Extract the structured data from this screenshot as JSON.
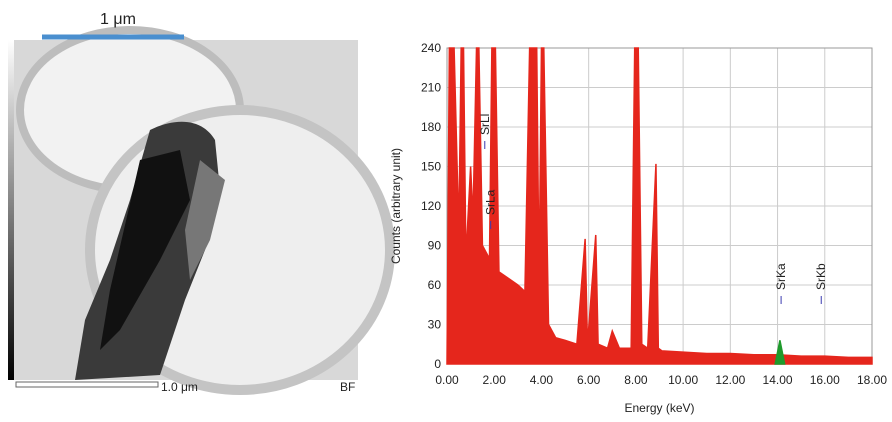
{
  "micrograph": {
    "scale_bar_label": "1 μm",
    "bottom_label": "1.0 μm",
    "mode": "BF"
  },
  "chart_data": {
    "type": "line",
    "xlabel": "Energy (keV)",
    "ylabel": "Counts (arbitrary unit)",
    "xlim": [
      0,
      18
    ],
    "ylim": [
      0,
      240
    ],
    "xticks": [
      {
        "value": 0,
        "label": "0.00"
      },
      {
        "value": 2,
        "label": "2.00"
      },
      {
        "value": 4,
        "label": "4.00"
      },
      {
        "value": 6,
        "label": "6.00"
      },
      {
        "value": 8,
        "label": "8.00"
      },
      {
        "value": 10,
        "label": "10.00"
      },
      {
        "value": 12,
        "label": "12.00"
      },
      {
        "value": 14,
        "label": "14.00"
      },
      {
        "value": 16,
        "label": "16.00"
      },
      {
        "value": 18,
        "label": "18.00"
      }
    ],
    "yticks": [
      0,
      30,
      60,
      90,
      120,
      150,
      180,
      210,
      240
    ],
    "grid": true,
    "series": [
      {
        "color": "#e5261c",
        "x": [
          0,
          0.1,
          0.3,
          0.5,
          0.6,
          0.7,
          0.8,
          1.0,
          1.1,
          1.25,
          1.35,
          1.5,
          1.8,
          1.9,
          2.05,
          2.2,
          2.6,
          3.0,
          3.3,
          3.5,
          3.8,
          3.9,
          4.0,
          4.1,
          4.3,
          4.6,
          5.0,
          5.5,
          5.85,
          5.95,
          6.3,
          6.4,
          6.8,
          7.0,
          7.3,
          7.8,
          7.95,
          8.1,
          8.25,
          8.5,
          8.85,
          8.95,
          9.1,
          10,
          11,
          12,
          13,
          14,
          15,
          16,
          17,
          18
        ],
        "values": [
          0,
          240,
          240,
          100,
          240,
          240,
          80,
          150,
          110,
          240,
          240,
          90,
          80,
          240,
          240,
          70,
          65,
          60,
          55,
          240,
          240,
          60,
          240,
          240,
          30,
          20,
          18,
          15,
          95,
          15,
          98,
          15,
          12,
          25,
          12,
          12,
          240,
          240,
          15,
          12,
          152,
          12,
          10,
          9,
          8,
          8,
          7,
          7,
          6,
          6,
          5,
          5
        ]
      },
      {
        "color": "#1f9a2c",
        "x": [
          13.9,
          14.1,
          14.3
        ],
        "values": [
          0,
          18,
          0
        ]
      }
    ],
    "annotations": [
      {
        "text": "SrLl",
        "x": 1.6
      },
      {
        "text": "SrLa",
        "x": 1.85
      },
      {
        "text": "SrKa",
        "x": 14.15
      },
      {
        "text": "SrKb",
        "x": 15.85
      }
    ]
  }
}
